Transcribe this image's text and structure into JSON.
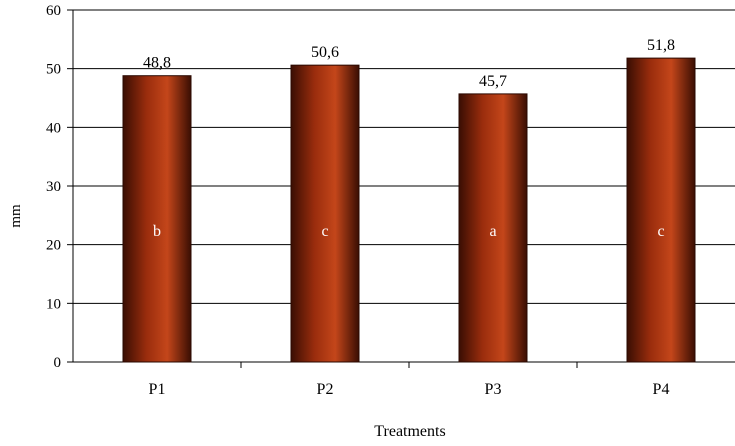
{
  "chart_data": {
    "type": "bar",
    "categories": [
      "P1",
      "P2",
      "P3",
      "P4"
    ],
    "values": [
      48.8,
      50.6,
      45.7,
      51.8
    ],
    "value_labels": [
      "48,8",
      "50,6",
      "45,7",
      "51,8"
    ],
    "letter_labels": [
      "b",
      "c",
      "a",
      "c"
    ],
    "xlabel": "Treatments",
    "ylabel": "mm",
    "ylim": [
      0,
      60
    ],
    "yticks": [
      0,
      10,
      20,
      30,
      40,
      50,
      60
    ],
    "grid": true,
    "legend": "none",
    "colors": {
      "bar_dark": "#3a0e03",
      "bar_mid": "#9b2d0d",
      "bar_light": "#c4461a",
      "grid": "#000000",
      "inner_label": "#ffffff"
    }
  }
}
